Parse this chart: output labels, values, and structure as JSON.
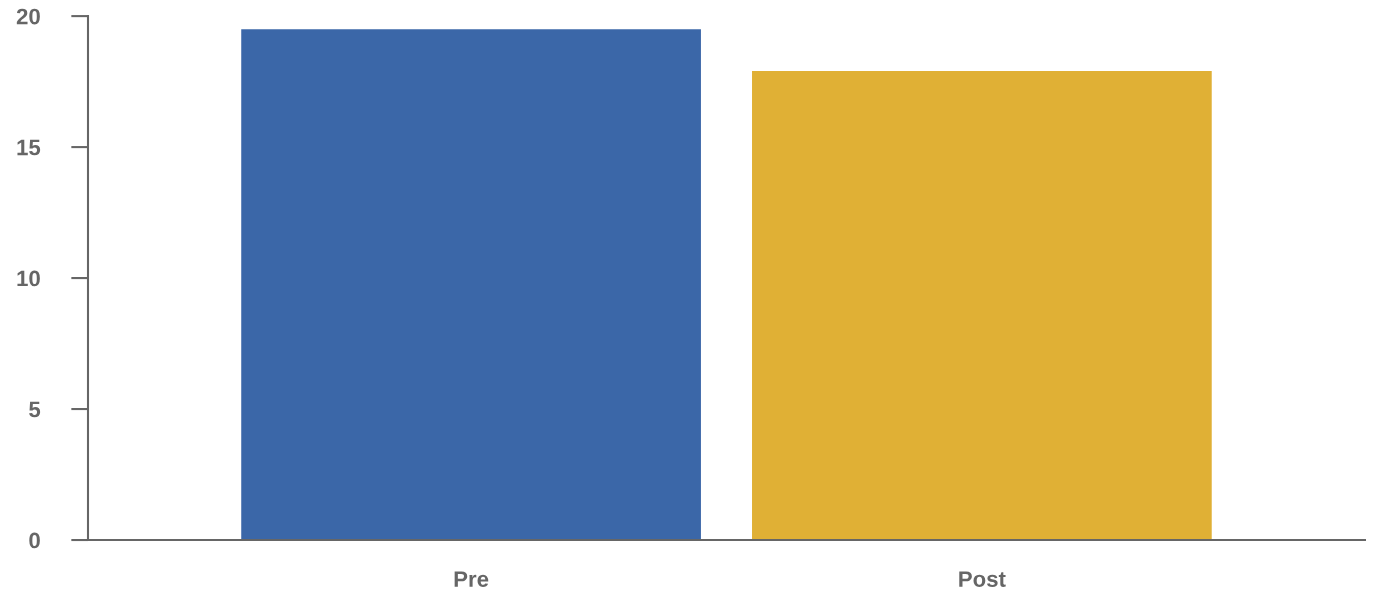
{
  "chart_data": {
    "type": "bar",
    "categories": [
      "Pre",
      "Post"
    ],
    "values": [
      19.5,
      17.9
    ],
    "colors": [
      "#3b67a8",
      "#e0b035"
    ],
    "ylim": [
      0,
      20
    ],
    "yticks": [
      0,
      5,
      10,
      15,
      20
    ],
    "grid": false,
    "legend": false
  }
}
